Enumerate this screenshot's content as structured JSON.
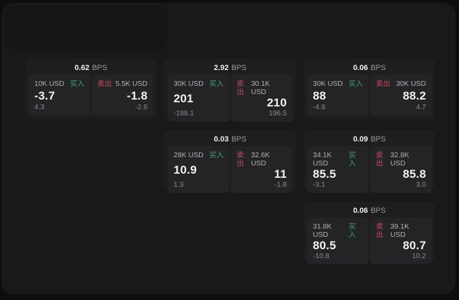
{
  "labels": {
    "bps": "BPS",
    "buy": "买入",
    "sell": "卖出"
  },
  "colors": {
    "outer_bg": "#0d0d0d",
    "window_bg": "#19191b",
    "overlay_bg": "#151517",
    "card_bg": "#1e1e20",
    "panel_bg": "#242427",
    "text_primary": "#f2f2f2",
    "text_secondary": "#b2b2b5",
    "text_muted": "#8c8c90",
    "buy_green": "#40a06c",
    "sell_red": "#c84a5e"
  },
  "cards": [
    {
      "col": 1,
      "row": 1,
      "bps": "0.62",
      "buy": {
        "notional": "10K USD",
        "price": "-3.7",
        "delta": "4.3"
      },
      "sell": {
        "notional": "5.5K USD",
        "price": "-1.8",
        "delta": "-2.6"
      }
    },
    {
      "col": 2,
      "row": 1,
      "bps": "2.92",
      "buy": {
        "notional": "30K USD",
        "price": "201",
        "delta": "-188.1"
      },
      "sell": {
        "notional": "30.1K USD",
        "price": "210",
        "delta": "196.5"
      }
    },
    {
      "col": 3,
      "row": 1,
      "bps": "0.06",
      "buy": {
        "notional": "30K USD",
        "price": "88",
        "delta": "-4.9"
      },
      "sell": {
        "notional": "30K USD",
        "price": "88.2",
        "delta": "4.7"
      }
    },
    {
      "col": 2,
      "row": 2,
      "bps": "0.03",
      "buy": {
        "notional": "28K USD",
        "price": "10.9",
        "delta": "1.3"
      },
      "sell": {
        "notional": "32.6K USD",
        "price": "11",
        "delta": "-1.8"
      }
    },
    {
      "col": 3,
      "row": 2,
      "bps": "0.09",
      "buy": {
        "notional": "34.1K USD",
        "price": "85.5",
        "delta": "-3.1"
      },
      "sell": {
        "notional": "32.8K USD",
        "price": "85.8",
        "delta": "3.0"
      }
    },
    {
      "col": 3,
      "row": 3,
      "bps": "0.06",
      "buy": {
        "notional": "31.8K USD",
        "price": "80.5",
        "delta": "-10.8"
      },
      "sell": {
        "notional": "39.1K USD",
        "price": "80.7",
        "delta": "10.2"
      }
    }
  ]
}
